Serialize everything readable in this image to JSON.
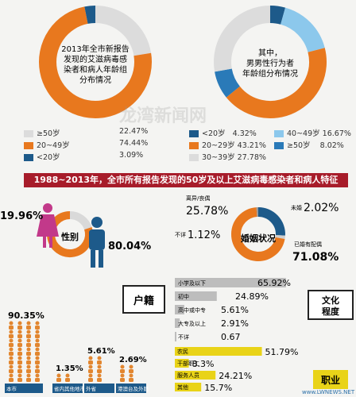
{
  "chart_data": [
    {
      "type": "pie",
      "title": "2013年全市新报告发现的艾滋病毒感染者和病人年龄组分布情况",
      "slices": [
        {
          "label": "≥50岁",
          "value": 22.47,
          "display": "22.47%",
          "color": "#dcdcdc"
        },
        {
          "label": "20~49岁",
          "value": 74.44,
          "display": "74.44%",
          "color": "#e8781e"
        },
        {
          "label": "<20岁",
          "value": 3.09,
          "display": "3.09%",
          "color": "#1d5a8a"
        }
      ]
    },
    {
      "type": "pie",
      "title": "其中，男男性行为者年龄组分布情况",
      "slices": [
        {
          "label": "<20岁",
          "value": 4.32,
          "display": "4.32%",
          "color": "#1d5a8a"
        },
        {
          "label": "40~49岁",
          "value": 16.67,
          "display": "16.67%",
          "color": "#8cc8ec"
        },
        {
          "label": "20~29岁",
          "value": 43.21,
          "display": "43.21%",
          "color": "#e8781e"
        },
        {
          "label": "≥50岁",
          "value": 8.02,
          "display": "8.02%",
          "color": "#2a7ab8"
        },
        {
          "label": "30~39岁",
          "value": 27.78,
          "display": "27.78%",
          "color": "#dcdcdc"
        }
      ]
    },
    {
      "type": "pie",
      "title": "性别",
      "slices": [
        {
          "label": "female",
          "value": 19.96,
          "display": "19.96%",
          "color": "#d9d9d9"
        },
        {
          "label": "male",
          "value": 80.04,
          "display": "80.04%",
          "color": "#e8781e"
        }
      ]
    },
    {
      "type": "pie",
      "title": "婚姻状况",
      "slices": [
        {
          "label": "离异/丧偶",
          "value": 25.78,
          "display": "25.78%",
          "color": "#1d5a8a"
        },
        {
          "label": "未婚",
          "value": 2.02,
          "display": "2.02%",
          "color": "#cfcfcf"
        },
        {
          "label": "已婚有配偶",
          "value": 71.08,
          "display": "71.08%",
          "color": "#e8781e"
        },
        {
          "label": "不详",
          "value": 1.12,
          "display": "1.12%",
          "color": "#999999"
        }
      ]
    },
    {
      "type": "bar",
      "title": "户籍",
      "categories": [
        "本市",
        "省内其他地市",
        "外省",
        "港澳台及外籍"
      ],
      "values": [
        90.35,
        1.35,
        5.61,
        2.69
      ],
      "labels": [
        "90.35%",
        "1.35%",
        "5.61%",
        "2.69%"
      ]
    },
    {
      "type": "bar",
      "title": "文化程度",
      "categories": [
        "小学及以下",
        "初中",
        "高中或中专",
        "大专及以上",
        "不详"
      ],
      "values": [
        65.92,
        24.89,
        5.61,
        2.91,
        0.67
      ],
      "labels": [
        "65.92%",
        "24.89%",
        "5.61%",
        "2.91%",
        "0.67"
      ]
    },
    {
      "type": "bar",
      "title": "职业",
      "categories": [
        "农民",
        "干部职工",
        "服务人员",
        "其他"
      ],
      "values": [
        51.79,
        8.3,
        24.21,
        15.7
      ],
      "labels": [
        "51.79%",
        "8.3%",
        "24.21%",
        "15.7%"
      ]
    }
  ],
  "banner": "1988~2013年，全市所有报告发现的50岁及以上艾滋病毒感染者和病人特征",
  "watermark": {
    "site": "龙湾新闻网",
    "url": "www.LWNEWS.NET"
  },
  "colors": {
    "orange": "#e8781e",
    "navy": "#1d5a8a",
    "red": "#a71c2a",
    "grey": "#dcdcdc"
  }
}
